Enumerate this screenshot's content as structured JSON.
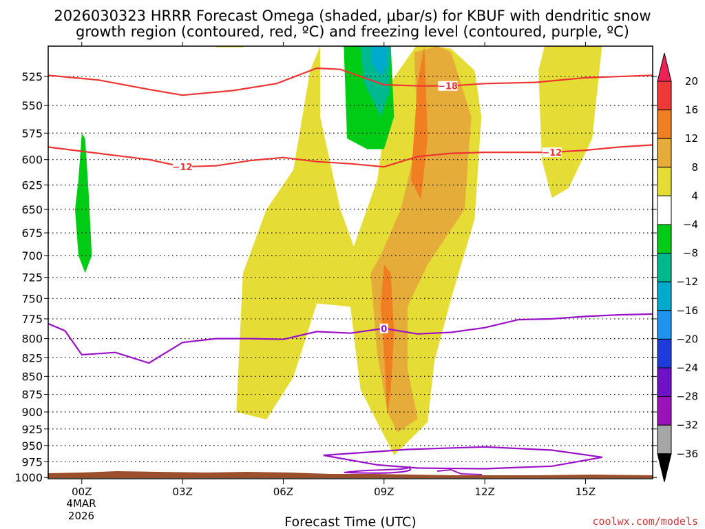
{
  "chart_data": {
    "type": "contour_cross_section",
    "title_line1": "2026030323 HRRR Forecast Omega (shaded, μbar/s) for KBUF with dendritic snow",
    "title_line2": "growth region (contoured, red, ºC) and freezing level (contoured, purple, ºC)",
    "xlabel": "Forecast Time (UTC)",
    "credit": "coolwx.com/models",
    "x_ticks": [
      "00Z",
      "03Z",
      "06Z",
      "09Z",
      "12Z",
      "15Z"
    ],
    "x_tick_hours": [
      0,
      3,
      6,
      9,
      12,
      15
    ],
    "date_line1": "4MAR",
    "date_line2": "2026",
    "xlim_hours": [
      -1,
      17
    ],
    "y_ticks": [
      525,
      550,
      575,
      600,
      625,
      650,
      675,
      700,
      725,
      750,
      775,
      800,
      825,
      850,
      875,
      900,
      925,
      950,
      975,
      1000
    ],
    "ylim_mb": [
      500,
      1002
    ],
    "y_scale": "log-pressure",
    "colorbar": {
      "labels": [
        "20",
        "16",
        "12",
        "8",
        "4",
        "−4",
        "−8",
        "−12",
        "−16",
        "−20",
        "−24",
        "−28",
        "−32",
        "−36"
      ],
      "colors": [
        "#ee2255",
        "#ee3a36",
        "#f07f22",
        "#e6ac3a",
        "#e6dc36",
        "#ffffff",
        "#00cc16",
        "#00b98f",
        "#00aacc",
        "#1e93f0",
        "#1e3cdc",
        "#6e11c8",
        "#9b11ba",
        "#a6a6a6",
        "#000000"
      ]
    },
    "dendritic_contours": [
      {
        "value": -18,
        "label": "−18",
        "label_hour": 10.9,
        "points": [
          [
            -1,
            524
          ],
          [
            0.5,
            528
          ],
          [
            2,
            536
          ],
          [
            3,
            541
          ],
          [
            4.5,
            537
          ],
          [
            5.8,
            531
          ],
          [
            7,
            518
          ],
          [
            7.7,
            519
          ],
          [
            8,
            522
          ],
          [
            9,
            532
          ],
          [
            10,
            533
          ],
          [
            11,
            533
          ],
          [
            12,
            531
          ],
          [
            13.5,
            530
          ],
          [
            15,
            526
          ],
          [
            17,
            524
          ]
        ]
      },
      {
        "value": -12,
        "label": "−12",
        "label_hour": 3.0,
        "label2_hour": 14.0,
        "points": [
          [
            -1,
            588
          ],
          [
            0,
            592
          ],
          [
            2,
            600
          ],
          [
            3,
            607
          ],
          [
            4,
            606
          ],
          [
            5,
            601
          ],
          [
            6,
            598
          ],
          [
            7,
            602
          ],
          [
            8,
            604
          ],
          [
            9,
            607
          ],
          [
            10,
            597
          ],
          [
            11,
            594
          ],
          [
            12,
            593
          ],
          [
            13,
            593
          ],
          [
            14,
            593
          ],
          [
            15,
            591
          ],
          [
            16,
            588
          ],
          [
            17,
            586
          ]
        ]
      }
    ],
    "freezing_level": {
      "value": 0,
      "label": "0",
      "label_hour": 9.0,
      "points": [
        [
          -1,
          781
        ],
        [
          -0.5,
          790
        ],
        [
          0,
          821
        ],
        [
          1,
          818
        ],
        [
          2,
          832
        ],
        [
          3,
          805
        ],
        [
          4,
          800
        ],
        [
          5,
          800
        ],
        [
          6,
          801
        ],
        [
          7,
          791
        ],
        [
          8,
          793
        ],
        [
          9,
          787
        ],
        [
          10,
          794
        ],
        [
          11,
          792
        ],
        [
          12,
          786
        ],
        [
          13,
          776
        ],
        [
          14,
          775
        ],
        [
          15,
          772
        ],
        [
          16,
          770
        ],
        [
          17,
          769
        ]
      ],
      "surface_loop": [
        [
          7.2,
          965
        ],
        [
          9.7,
          956
        ],
        [
          12,
          952
        ],
        [
          14,
          957
        ],
        [
          15.5,
          968
        ],
        [
          14,
          982
        ],
        [
          12,
          986
        ],
        [
          10,
          985
        ],
        [
          8.8,
          980
        ]
      ]
    },
    "omega_regions": [
      {
        "range": "4 to 8",
        "color": "#e6dc36",
        "points": [
          [
            4.6,
            900
          ],
          [
            5.5,
            911
          ],
          [
            6.3,
            851
          ],
          [
            7,
            756
          ],
          [
            8,
            760
          ],
          [
            8.3,
            868
          ],
          [
            9.3,
            965
          ],
          [
            10.3,
            915
          ],
          [
            10.5,
            830
          ],
          [
            11,
            750
          ],
          [
            11.7,
            660
          ],
          [
            11.9,
            560
          ],
          [
            11.7,
            520
          ],
          [
            11,
            502
          ],
          [
            10,
            498
          ],
          [
            9.2,
            530
          ],
          [
            8.8,
            620
          ],
          [
            8.1,
            690
          ],
          [
            7.7,
            650
          ],
          [
            7.1,
            560
          ],
          [
            7.1,
            500
          ],
          [
            6.8,
            520
          ],
          [
            6.3,
            610
          ],
          [
            5.5,
            650
          ],
          [
            4.8,
            720
          ]
        ]
      },
      {
        "range": "4 to 8",
        "color": "#e6dc36",
        "points": [
          [
            13.8,
            498
          ],
          [
            15.5,
            498
          ],
          [
            15.2,
            580
          ],
          [
            14.5,
            628
          ],
          [
            14,
            638
          ],
          [
            13.7,
            600
          ],
          [
            13.6,
            520
          ]
        ]
      },
      {
        "range": "4 to 8",
        "color": "#e6dc36",
        "points": [
          [
            4,
            498
          ],
          [
            4.9,
            498
          ],
          [
            4.8,
            501
          ],
          [
            4,
            501
          ]
        ]
      },
      {
        "range": "8 to 12",
        "color": "#e6ac3a",
        "points": [
          [
            8.6,
            720
          ],
          [
            8.8,
            820
          ],
          [
            9.1,
            900
          ],
          [
            9.4,
            930
          ],
          [
            10,
            910
          ],
          [
            9.7,
            840
          ],
          [
            9.7,
            760
          ],
          [
            10.3,
            710
          ],
          [
            11.4,
            650
          ],
          [
            11.6,
            560
          ],
          [
            11,
            505
          ],
          [
            10.6,
            500
          ],
          [
            9.9,
            505
          ],
          [
            10,
            580
          ],
          [
            9.5,
            650
          ],
          [
            8.9,
            700
          ]
        ]
      },
      {
        "range": "12 to 16",
        "color": "#f07f22",
        "points": [
          [
            8.9,
            760
          ],
          [
            9,
            820
          ],
          [
            9.1,
            905
          ],
          [
            9.2,
            870
          ],
          [
            9.3,
            790
          ],
          [
            9.2,
            720
          ],
          [
            9,
            710
          ]
        ]
      },
      {
        "range": "12 to 16",
        "color": "#f07f22",
        "points": [
          [
            9.8,
            620
          ],
          [
            10.1,
            640
          ],
          [
            10.3,
            580
          ],
          [
            10.2,
            500
          ],
          [
            10,
            530
          ]
        ]
      },
      {
        "range": "-8 to -4",
        "color": "#00cc16",
        "points": [
          [
            -0.2,
            650
          ],
          [
            -0.1,
            700
          ],
          [
            0.1,
            720
          ],
          [
            0.3,
            700
          ],
          [
            0.2,
            630
          ],
          [
            0.1,
            580
          ],
          [
            0,
            575
          ],
          [
            -0.1,
            620
          ]
        ]
      },
      {
        "range": "-8 to -4",
        "color": "#00cc16",
        "points": [
          [
            7.8,
            498
          ],
          [
            7.9,
            580
          ],
          [
            8.5,
            590
          ],
          [
            9,
            590
          ],
          [
            9.3,
            560
          ],
          [
            9.2,
            498
          ]
        ]
      },
      {
        "range": "-12 to -8",
        "color": "#00b98f",
        "points": [
          [
            8.3,
            498
          ],
          [
            8.4,
            530
          ],
          [
            8.9,
            560
          ],
          [
            9.15,
            540
          ],
          [
            9.2,
            498
          ]
        ]
      },
      {
        "range": "-16 to -12",
        "color": "#00aacc",
        "points": [
          [
            8.6,
            498
          ],
          [
            8.65,
            515
          ],
          [
            8.9,
            525
          ],
          [
            9.1,
            515
          ],
          [
            9.1,
            498
          ]
        ]
      }
    ]
  }
}
